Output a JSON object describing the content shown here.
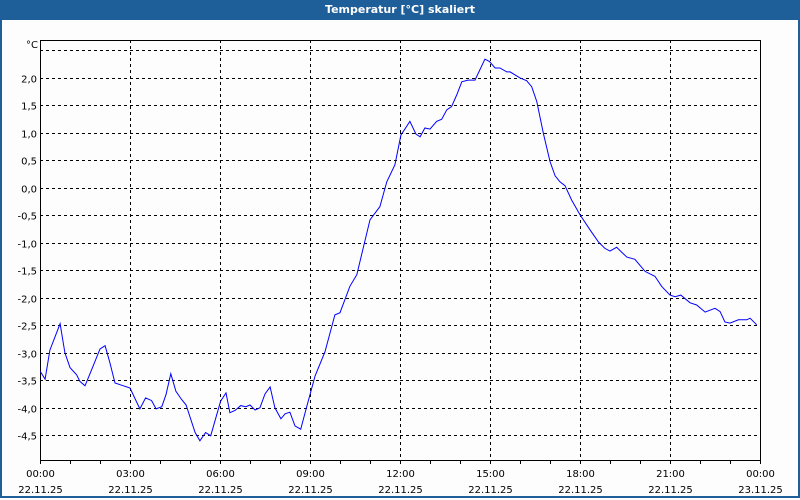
{
  "window": {
    "title": "Temperatur [°C] skaliert"
  },
  "colors": {
    "titlebar": "#1f5f99",
    "line": "#0000ff",
    "grid": "#000000"
  },
  "chart_data": {
    "type": "line",
    "title": "Temperatur [°C] skaliert",
    "ylabel": "°C",
    "xlabel": "",
    "xlim_hours": [
      0,
      24
    ],
    "ylim": [
      -4.95,
      2.69
    ],
    "yticks": [
      2.5,
      2.0,
      1.5,
      1.0,
      0.5,
      0.0,
      -0.5,
      -1.0,
      -1.5,
      -2.0,
      -2.5,
      -3.0,
      -3.5,
      -4.0,
      -4.5
    ],
    "ytick_labels": [
      "",
      "2,0",
      "1,5",
      "1,0",
      "0,5",
      "0,0",
      "-0,5",
      "-1,0",
      "-1,5",
      "-2,0",
      "-2,5",
      "-3,0",
      "-3,5",
      "-4,0",
      "-4,5"
    ],
    "xticks": [
      {
        "hour": 0,
        "time": "00:00",
        "date": "22.11.25"
      },
      {
        "hour": 3,
        "time": "03:00",
        "date": "22.11.25"
      },
      {
        "hour": 6,
        "time": "06:00",
        "date": "22.11.25"
      },
      {
        "hour": 9,
        "time": "09:00",
        "date": "22.11.25"
      },
      {
        "hour": 12,
        "time": "12:00",
        "date": "22.11.25"
      },
      {
        "hour": 15,
        "time": "15:00",
        "date": "22.11.25"
      },
      {
        "hour": 18,
        "time": "18:00",
        "date": "22.11.25"
      },
      {
        "hour": 21,
        "time": "21:00",
        "date": "22.11.25"
      },
      {
        "hour": 24,
        "time": "00:00",
        "date": "23.11.25"
      }
    ],
    "grid": true,
    "series": [
      {
        "name": "Temperatur",
        "x": [
          0.01,
          0.17,
          0.33,
          0.67,
          0.83,
          1.0,
          1.22,
          1.33,
          1.5,
          1.72,
          2.0,
          2.17,
          2.33,
          2.5,
          2.78,
          3.0,
          3.33,
          3.52,
          3.72,
          3.87,
          4.06,
          4.2,
          4.36,
          4.53,
          4.72,
          4.87,
          5.17,
          5.33,
          5.52,
          5.69,
          6.02,
          6.2,
          6.33,
          6.5,
          6.69,
          6.86,
          7.0,
          7.17,
          7.33,
          7.5,
          7.67,
          7.83,
          8.03,
          8.17,
          8.33,
          8.5,
          8.69,
          8.89,
          9.17,
          9.5,
          9.83,
          10.0,
          10.33,
          10.56,
          11.0,
          11.33,
          11.56,
          11.83,
          12.03,
          12.33,
          12.53,
          12.67,
          12.83,
          13.0,
          13.22,
          13.39,
          13.56,
          13.72,
          13.89,
          14.06,
          14.27,
          14.5,
          14.83,
          14.98,
          15.17,
          15.33,
          15.56,
          15.67,
          16.0,
          16.22,
          16.39,
          16.56,
          16.78,
          17.0,
          17.17,
          17.33,
          17.5,
          17.72,
          18.0,
          18.33,
          18.61,
          18.83,
          19.0,
          19.22,
          19.56,
          19.83,
          20.17,
          20.5,
          20.72,
          21.0,
          21.17,
          21.36,
          21.67,
          21.89,
          22.17,
          22.5,
          22.67,
          22.83,
          23.0,
          23.28,
          23.56,
          23.67,
          23.89
        ],
        "y": [
          -3.34,
          -3.48,
          -2.95,
          -2.47,
          -3.0,
          -3.27,
          -3.4,
          -3.52,
          -3.6,
          -3.31,
          -2.93,
          -2.87,
          -3.18,
          -3.55,
          -3.6,
          -3.64,
          -4.02,
          -3.82,
          -3.87,
          -4.02,
          -3.98,
          -3.76,
          -3.38,
          -3.7,
          -3.85,
          -3.95,
          -4.45,
          -4.6,
          -4.45,
          -4.51,
          -3.88,
          -3.73,
          -4.09,
          -4.05,
          -3.96,
          -3.98,
          -3.95,
          -4.04,
          -4.0,
          -3.75,
          -3.62,
          -4.0,
          -4.2,
          -4.11,
          -4.08,
          -4.33,
          -4.39,
          -3.98,
          -3.42,
          -2.98,
          -2.31,
          -2.27,
          -1.79,
          -1.58,
          -0.58,
          -0.34,
          0.11,
          0.42,
          0.96,
          1.21,
          0.98,
          0.93,
          1.09,
          1.07,
          1.21,
          1.25,
          1.42,
          1.48,
          1.69,
          1.93,
          1.96,
          1.96,
          2.34,
          2.3,
          2.18,
          2.18,
          2.11,
          2.11,
          2.0,
          1.95,
          1.84,
          1.57,
          0.99,
          0.48,
          0.22,
          0.11,
          0.04,
          -0.22,
          -0.49,
          -0.76,
          -0.98,
          -1.1,
          -1.15,
          -1.08,
          -1.26,
          -1.3,
          -1.52,
          -1.61,
          -1.79,
          -1.95,
          -1.98,
          -1.95,
          -2.09,
          -2.13,
          -2.26,
          -2.19,
          -2.25,
          -2.44,
          -2.46,
          -2.4,
          -2.4,
          -2.37,
          -2.49
        ]
      }
    ]
  }
}
